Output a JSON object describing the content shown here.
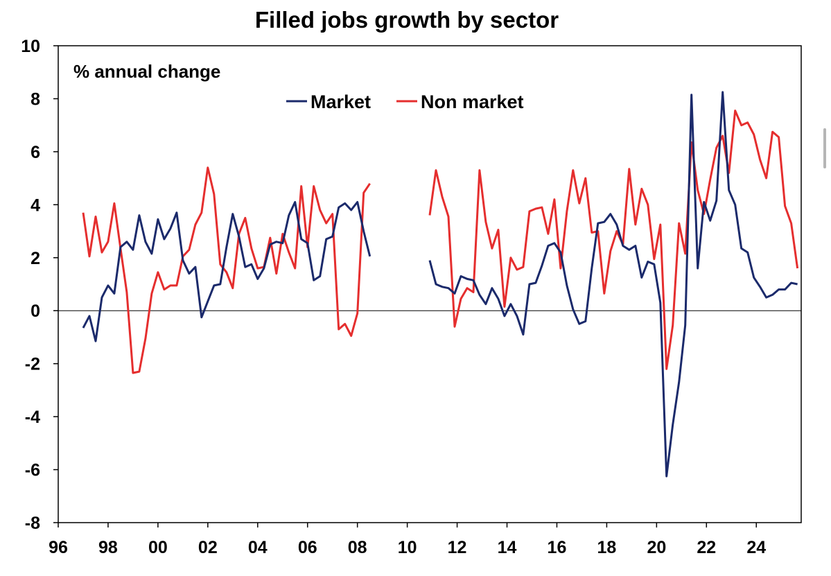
{
  "chart_data": {
    "type": "line",
    "title": "Filled jobs growth by sector",
    "unit_label": "% annual change",
    "xlabel": "",
    "ylabel": "",
    "xlim": [
      1996,
      2025.8
    ],
    "ylim": [
      -8,
      10
    ],
    "y_ticks": [
      10,
      8,
      6,
      4,
      2,
      0,
      -2,
      -4,
      -6,
      -8
    ],
    "x_ticks": [
      {
        "value": 1996,
        "label": "96"
      },
      {
        "value": 1998,
        "label": "98"
      },
      {
        "value": 2000,
        "label": "00"
      },
      {
        "value": 2002,
        "label": "02"
      },
      {
        "value": 2004,
        "label": "04"
      },
      {
        "value": 2006,
        "label": "06"
      },
      {
        "value": 2008,
        "label": "08"
      },
      {
        "value": 2010,
        "label": "10"
      },
      {
        "value": 2012,
        "label": "12"
      },
      {
        "value": 2014,
        "label": "14"
      },
      {
        "value": 2016,
        "label": "16"
      },
      {
        "value": 2018,
        "label": "18"
      },
      {
        "value": 2020,
        "label": "20"
      },
      {
        "value": 2022,
        "label": "22"
      },
      {
        "value": 2024,
        "label": "24"
      }
    ],
    "grid": false,
    "legend_position": "top-center",
    "series": [
      {
        "name": "Market",
        "color": "#1b2a6b",
        "segments": [
          [
            [
              1997.0,
              -0.65
            ],
            [
              1997.25,
              -0.2
            ],
            [
              1997.5,
              -1.15
            ],
            [
              1997.75,
              0.5
            ],
            [
              1998.0,
              0.95
            ],
            [
              1998.25,
              0.65
            ],
            [
              1998.5,
              2.4
            ],
            [
              1998.75,
              2.6
            ],
            [
              1999.0,
              2.3
            ],
            [
              1999.25,
              3.6
            ],
            [
              1999.5,
              2.6
            ],
            [
              1999.75,
              2.15
            ],
            [
              2000.0,
              3.45
            ],
            [
              2000.25,
              2.7
            ],
            [
              2000.5,
              3.1
            ],
            [
              2000.75,
              3.7
            ],
            [
              2001.0,
              1.9
            ],
            [
              2001.25,
              1.4
            ],
            [
              2001.5,
              1.65
            ],
            [
              2001.75,
              -0.25
            ],
            [
              2002.0,
              0.35
            ],
            [
              2002.25,
              0.95
            ],
            [
              2002.5,
              1.0
            ],
            [
              2002.75,
              2.4
            ],
            [
              2003.0,
              3.65
            ],
            [
              2003.25,
              2.8
            ],
            [
              2003.5,
              1.65
            ],
            [
              2003.75,
              1.75
            ],
            [
              2004.0,
              1.2
            ],
            [
              2004.25,
              1.6
            ],
            [
              2004.5,
              2.5
            ],
            [
              2004.75,
              2.6
            ],
            [
              2005.0,
              2.55
            ],
            [
              2005.25,
              3.6
            ],
            [
              2005.5,
              4.1
            ],
            [
              2005.75,
              2.7
            ],
            [
              2006.0,
              2.55
            ],
            [
              2006.25,
              1.15
            ],
            [
              2006.5,
              1.3
            ],
            [
              2006.75,
              2.7
            ],
            [
              2007.0,
              2.8
            ],
            [
              2007.25,
              3.9
            ],
            [
              2007.5,
              4.05
            ],
            [
              2007.75,
              3.8
            ],
            [
              2008.0,
              4.1
            ],
            [
              2008.25,
              3.0
            ],
            [
              2008.5,
              2.05
            ]
          ],
          [
            [
              2010.9,
              1.9
            ],
            [
              2011.15,
              1.0
            ],
            [
              2011.4,
              0.9
            ],
            [
              2011.65,
              0.85
            ],
            [
              2011.9,
              0.65
            ],
            [
              2012.15,
              1.3
            ],
            [
              2012.4,
              1.2
            ],
            [
              2012.65,
              1.15
            ],
            [
              2012.9,
              0.6
            ],
            [
              2013.15,
              0.25
            ],
            [
              2013.4,
              0.85
            ],
            [
              2013.65,
              0.45
            ],
            [
              2013.9,
              -0.2
            ],
            [
              2014.15,
              0.25
            ],
            [
              2014.4,
              -0.2
            ],
            [
              2014.65,
              -0.9
            ],
            [
              2014.9,
              1.0
            ],
            [
              2015.15,
              1.05
            ],
            [
              2015.4,
              1.7
            ],
            [
              2015.65,
              2.45
            ],
            [
              2015.9,
              2.55
            ],
            [
              2016.15,
              2.2
            ],
            [
              2016.4,
              0.95
            ],
            [
              2016.65,
              0.05
            ],
            [
              2016.9,
              -0.5
            ],
            [
              2017.15,
              -0.4
            ],
            [
              2017.4,
              1.6
            ],
            [
              2017.65,
              3.3
            ],
            [
              2017.9,
              3.35
            ],
            [
              2018.15,
              3.65
            ],
            [
              2018.4,
              3.25
            ],
            [
              2018.65,
              2.45
            ],
            [
              2018.9,
              2.3
            ],
            [
              2019.15,
              2.45
            ],
            [
              2019.4,
              1.25
            ],
            [
              2019.65,
              1.85
            ],
            [
              2019.9,
              1.75
            ],
            [
              2020.15,
              0.3
            ],
            [
              2020.4,
              -6.25
            ],
            [
              2020.65,
              -4.3
            ],
            [
              2020.9,
              -2.7
            ],
            [
              2021.15,
              -0.55
            ],
            [
              2021.4,
              8.15
            ],
            [
              2021.65,
              1.6
            ],
            [
              2021.9,
              4.1
            ],
            [
              2022.15,
              3.4
            ],
            [
              2022.4,
              4.15
            ],
            [
              2022.65,
              8.25
            ],
            [
              2022.9,
              4.55
            ],
            [
              2023.15,
              4.0
            ],
            [
              2023.4,
              2.35
            ],
            [
              2023.65,
              2.2
            ],
            [
              2023.9,
              1.25
            ],
            [
              2024.15,
              0.9
            ],
            [
              2024.4,
              0.5
            ],
            [
              2024.65,
              0.6
            ],
            [
              2024.9,
              0.8
            ],
            [
              2025.15,
              0.8
            ],
            [
              2025.4,
              1.05
            ],
            [
              2025.65,
              1.0
            ]
          ]
        ]
      },
      {
        "name": "Non market",
        "color": "#e52e2e",
        "segments": [
          [
            [
              1997.0,
              3.7
            ],
            [
              1997.25,
              2.05
            ],
            [
              1997.5,
              3.55
            ],
            [
              1997.75,
              2.2
            ],
            [
              1998.0,
              2.6
            ],
            [
              1998.25,
              4.05
            ],
            [
              1998.5,
              2.35
            ],
            [
              1998.75,
              0.7
            ],
            [
              1999.0,
              -2.35
            ],
            [
              1999.25,
              -2.3
            ],
            [
              1999.5,
              -1.05
            ],
            [
              1999.75,
              0.65
            ],
            [
              2000.0,
              1.45
            ],
            [
              2000.25,
              0.8
            ],
            [
              2000.5,
              0.95
            ],
            [
              2000.75,
              0.95
            ],
            [
              2001.0,
              2.05
            ],
            [
              2001.25,
              2.3
            ],
            [
              2001.5,
              3.25
            ],
            [
              2001.75,
              3.7
            ],
            [
              2002.0,
              5.4
            ],
            [
              2002.25,
              4.4
            ],
            [
              2002.5,
              1.75
            ],
            [
              2002.75,
              1.45
            ],
            [
              2003.0,
              0.85
            ],
            [
              2003.25,
              2.9
            ],
            [
              2003.5,
              3.5
            ],
            [
              2003.75,
              2.35
            ],
            [
              2004.0,
              1.6
            ],
            [
              2004.25,
              1.65
            ],
            [
              2004.5,
              2.75
            ],
            [
              2004.75,
              1.4
            ],
            [
              2005.0,
              2.9
            ],
            [
              2005.25,
              2.2
            ],
            [
              2005.5,
              1.6
            ],
            [
              2005.75,
              4.7
            ],
            [
              2006.0,
              2.4
            ],
            [
              2006.25,
              4.7
            ],
            [
              2006.5,
              3.8
            ],
            [
              2006.75,
              3.3
            ],
            [
              2007.0,
              3.65
            ],
            [
              2007.25,
              -0.7
            ],
            [
              2007.5,
              -0.5
            ],
            [
              2007.75,
              -0.95
            ],
            [
              2008.0,
              -0.1
            ],
            [
              2008.25,
              4.45
            ],
            [
              2008.5,
              4.8
            ]
          ],
          [
            [
              2010.9,
              3.6
            ],
            [
              2011.15,
              5.3
            ],
            [
              2011.4,
              4.3
            ],
            [
              2011.65,
              3.55
            ],
            [
              2011.9,
              -0.6
            ],
            [
              2012.15,
              0.45
            ],
            [
              2012.4,
              0.85
            ],
            [
              2012.65,
              0.7
            ],
            [
              2012.9,
              5.3
            ],
            [
              2013.15,
              3.35
            ],
            [
              2013.4,
              2.35
            ],
            [
              2013.65,
              3.05
            ],
            [
              2013.9,
              0.15
            ],
            [
              2014.15,
              2.0
            ],
            [
              2014.4,
              1.55
            ],
            [
              2014.65,
              1.65
            ],
            [
              2014.9,
              3.75
            ],
            [
              2015.15,
              3.85
            ],
            [
              2015.4,
              3.9
            ],
            [
              2015.65,
              2.9
            ],
            [
              2015.9,
              4.2
            ],
            [
              2016.15,
              1.6
            ],
            [
              2016.4,
              3.75
            ],
            [
              2016.65,
              5.3
            ],
            [
              2016.9,
              4.05
            ],
            [
              2017.15,
              5.0
            ],
            [
              2017.4,
              2.95
            ],
            [
              2017.65,
              3.0
            ],
            [
              2017.9,
              0.65
            ],
            [
              2018.15,
              2.25
            ],
            [
              2018.4,
              3.0
            ],
            [
              2018.65,
              2.5
            ],
            [
              2018.9,
              5.35
            ],
            [
              2019.15,
              3.25
            ],
            [
              2019.4,
              4.6
            ],
            [
              2019.65,
              4.0
            ],
            [
              2019.9,
              1.95
            ],
            [
              2020.15,
              3.25
            ],
            [
              2020.4,
              -2.2
            ],
            [
              2020.65,
              -0.55
            ],
            [
              2020.9,
              3.3
            ],
            [
              2021.15,
              2.15
            ],
            [
              2021.4,
              6.35
            ],
            [
              2021.65,
              4.55
            ],
            [
              2021.9,
              3.65
            ],
            [
              2022.15,
              4.95
            ],
            [
              2022.4,
              6.15
            ],
            [
              2022.65,
              6.6
            ],
            [
              2022.9,
              5.2
            ],
            [
              2023.15,
              7.55
            ],
            [
              2023.4,
              7.0
            ],
            [
              2023.65,
              7.1
            ],
            [
              2023.9,
              6.65
            ],
            [
              2024.15,
              5.7
            ],
            [
              2024.4,
              5.0
            ],
            [
              2024.65,
              6.75
            ],
            [
              2024.9,
              6.55
            ],
            [
              2025.15,
              3.95
            ],
            [
              2025.4,
              3.3
            ],
            [
              2025.65,
              1.6
            ]
          ]
        ]
      }
    ]
  }
}
